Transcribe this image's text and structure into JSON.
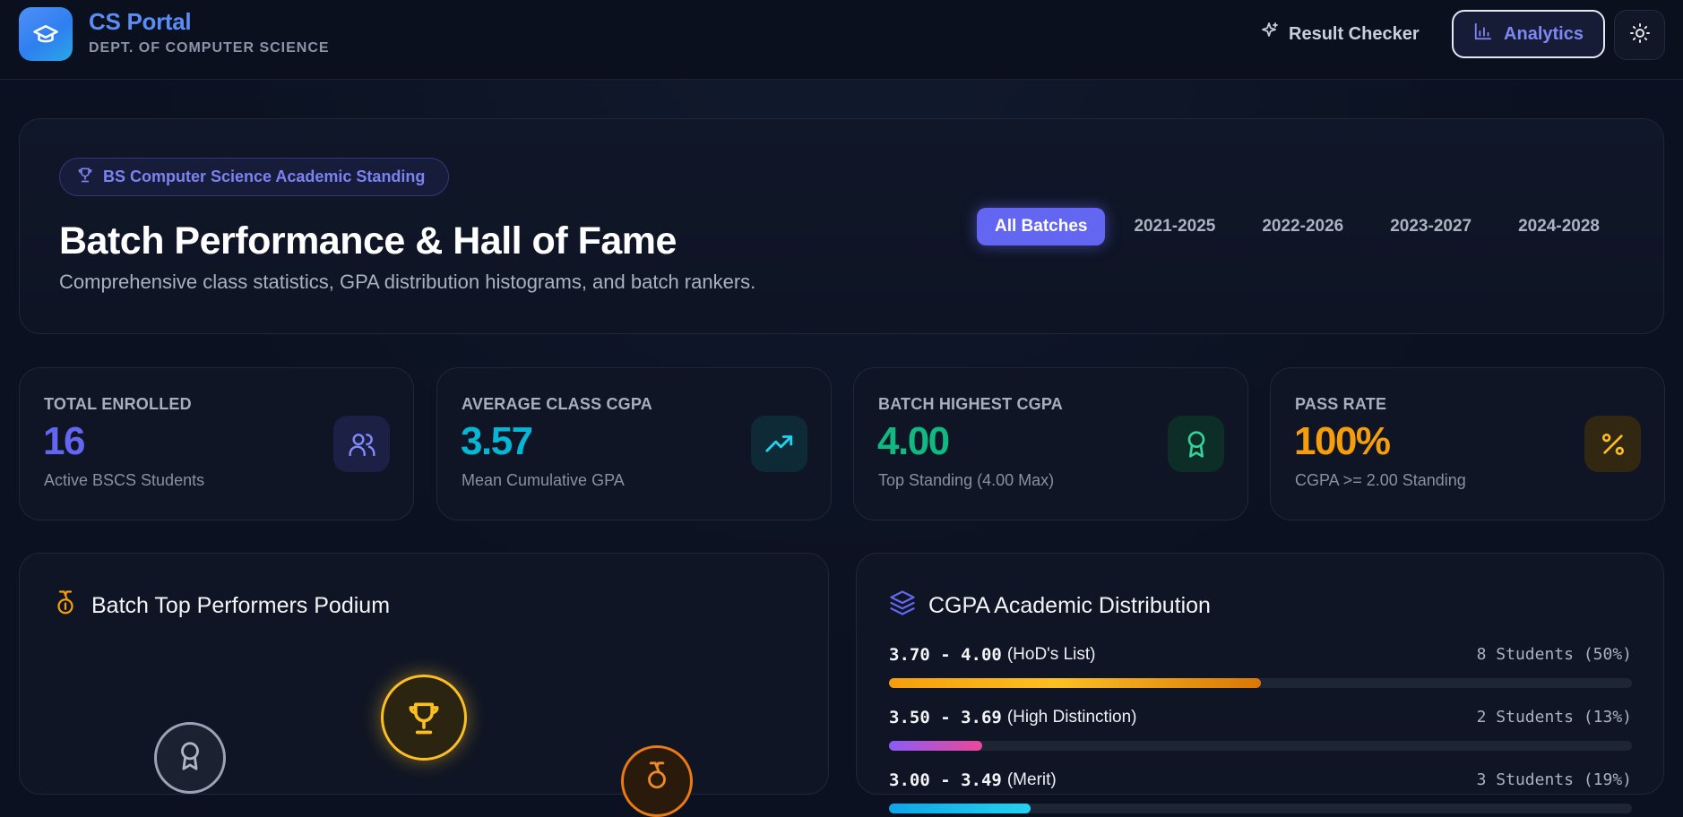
{
  "brand": {
    "name": "CS Portal",
    "subtitle": "DEPT. OF COMPUTER SCIENCE"
  },
  "nav": {
    "result_checker": "Result Checker",
    "analytics": "Analytics"
  },
  "hero": {
    "pill": "BS Computer Science Academic Standing",
    "title": "Batch Performance & Hall of Fame",
    "subtitle": "Comprehensive class statistics, GPA distribution histograms, and batch rankers.",
    "batches": [
      "All Batches",
      "2021-2025",
      "2022-2026",
      "2023-2027",
      "2024-2028"
    ],
    "active_batch": "All Batches"
  },
  "stats": [
    {
      "label": "TOTAL ENROLLED",
      "value": "16",
      "note": "Active BSCS Students",
      "color": "#6366f1",
      "icon": "users-icon"
    },
    {
      "label": "AVERAGE CLASS CGPA",
      "value": "3.57",
      "note": "Mean Cumulative GPA",
      "color": "#06b6d4",
      "icon": "trending-up-icon"
    },
    {
      "label": "BATCH HIGHEST CGPA",
      "value": "4.00",
      "note": "Top Standing (4.00 Max)",
      "color": "#10b981",
      "icon": "award-icon"
    },
    {
      "label": "PASS RATE",
      "value": "100%",
      "note": "CGPA >= 2.00 Standing",
      "color": "#f59e0b",
      "icon": "percent-icon"
    }
  ],
  "podium": {
    "title": "Batch Top Performers Podium"
  },
  "distribution": {
    "title": "CGPA Academic Distribution",
    "rows": [
      {
        "range": "3.70 - 4.00",
        "label": "(HoD's List)",
        "count": "8 Students (50%)",
        "fraction": 0.5,
        "gradient": "linear-gradient(90deg,#f59e0b 0%,#fbbf24 45%,#d97706 100%)"
      },
      {
        "range": "3.50 - 3.69",
        "label": "(High Distinction)",
        "count": "2 Students (13%)",
        "fraction": 0.125,
        "gradient": "linear-gradient(90deg,#8b5cf6 0%,#ec4899 100%)"
      },
      {
        "range": "3.00 - 3.49",
        "label": "(Merit)",
        "count": "3 Students (19%)",
        "fraction": 0.19,
        "gradient": "linear-gradient(90deg,#0ea5e9 0%,#22d3ee 100%)"
      }
    ]
  }
}
